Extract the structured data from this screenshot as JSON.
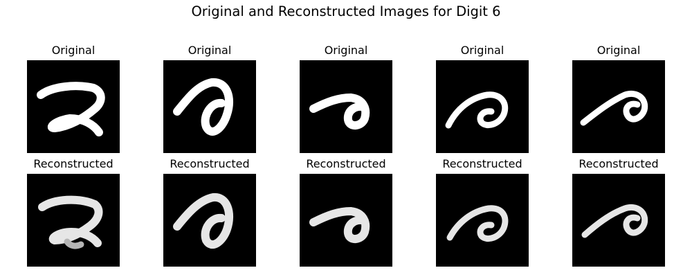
{
  "figure": {
    "title": "Original and Reconstructed Images for Digit 6",
    "original_label": "Original",
    "reconstructed_label": "Reconstructed"
  },
  "images": [
    {
      "row": "original",
      "column": 1,
      "label": "Original"
    },
    {
      "row": "original",
      "column": 2,
      "label": "Original"
    },
    {
      "row": "original",
      "column": 3,
      "label": "Original"
    },
    {
      "row": "original",
      "column": 4,
      "label": "Original"
    },
    {
      "row": "original",
      "column": 5,
      "label": "Original"
    },
    {
      "row": "reconstructed",
      "column": 1,
      "label": "Reconstructed"
    },
    {
      "row": "reconstructed",
      "column": 2,
      "label": "Reconstructed"
    },
    {
      "row": "reconstructed",
      "column": 3,
      "label": "Reconstructed"
    },
    {
      "row": "reconstructed",
      "column": 4,
      "label": "Reconstructed"
    },
    {
      "row": "reconstructed",
      "column": 5,
      "label": "Reconstructed"
    }
  ],
  "colors": {
    "background": "#ffffff",
    "image_background": "#000000",
    "stroke": "#ffffff"
  }
}
